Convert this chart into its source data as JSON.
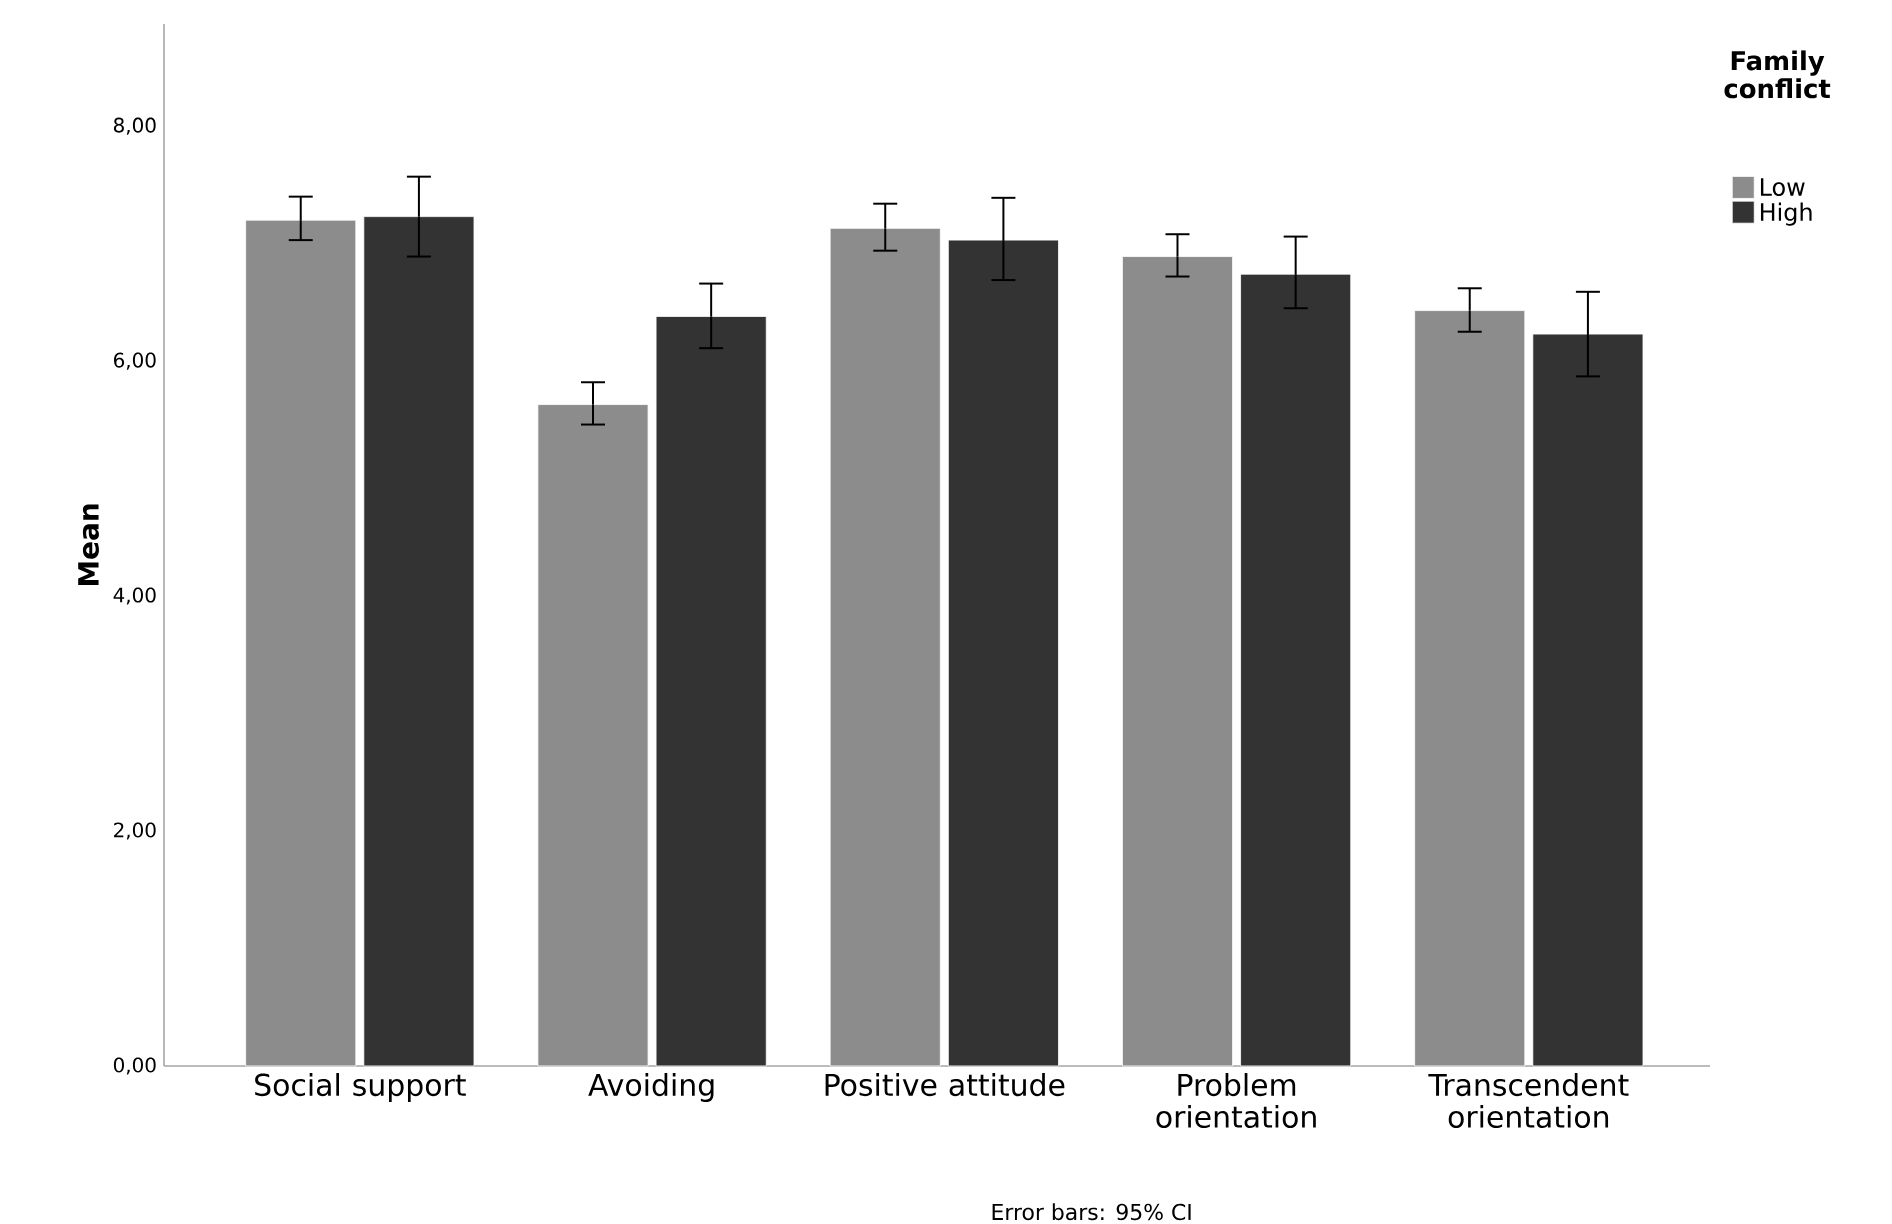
{
  "chart_data": {
    "type": "bar",
    "ylabel": "Mean",
    "legend_title": "Family conflict",
    "legend": "top right",
    "grid": false,
    "categories": [
      "Social support",
      "Avoiding",
      "Positive attitude",
      "Problem orientation",
      "Transcendent orientation"
    ],
    "series": [
      {
        "name": "Low",
        "color": "#8c8c8c",
        "values": [
          7.2,
          5.63,
          7.13,
          6.89,
          6.43
        ],
        "errors": [
          [
            7.03,
            7.4
          ],
          [
            5.46,
            5.82
          ],
          [
            6.94,
            7.34
          ],
          [
            6.72,
            7.08
          ],
          [
            6.25,
            6.62
          ]
        ]
      },
      {
        "name": "High",
        "color": "#333333",
        "values": [
          7.23,
          6.38,
          7.03,
          6.74,
          6.23
        ],
        "errors": [
          [
            6.89,
            7.57
          ],
          [
            6.11,
            6.66
          ],
          [
            6.69,
            7.39
          ],
          [
            6.45,
            7.06
          ],
          [
            5.87,
            6.59
          ]
        ]
      }
    ],
    "ylim": [
      0,
      8.87
    ],
    "yticks": [
      {
        "value": 0,
        "label": "0,00"
      },
      {
        "value": 2,
        "label": "2,00"
      },
      {
        "value": 4,
        "label": "4,00"
      },
      {
        "value": 6,
        "label": "6,00"
      },
      {
        "value": 8,
        "label": "8,00"
      }
    ],
    "annotations": [
      "Error bars: 95% CI"
    ]
  }
}
